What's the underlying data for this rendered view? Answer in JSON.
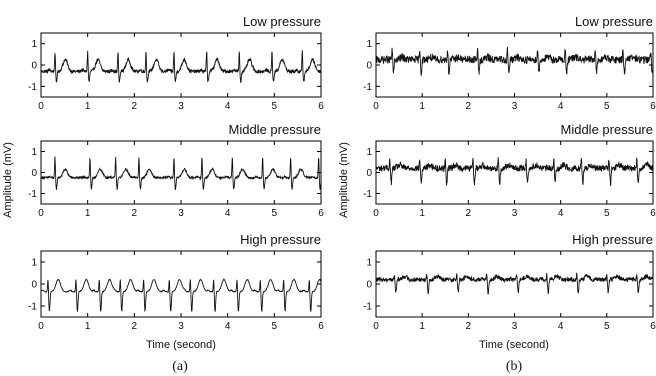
{
  "figure": {
    "ylabel": "Amplitude (mV)",
    "xlabel": "Time (second)",
    "captions": [
      "(a)",
      "(b)"
    ]
  },
  "style": {
    "trace_color": "#111111",
    "axis_color": "#000000"
  },
  "chart_data": [
    {
      "id": "a-low",
      "panel": "(a)",
      "type": "line",
      "title": "Low pressure",
      "xlim": [
        0,
        6
      ],
      "ylim": [
        -1.5,
        1.5
      ],
      "xticks": [
        0,
        1,
        2,
        3,
        4,
        5,
        6
      ],
      "yticks": [
        -1,
        0,
        1
      ],
      "beat_times": [
        0.3,
        1.0,
        1.65,
        2.25,
        2.85,
        3.55,
        4.25,
        4.95,
        5.6
      ],
      "r_peak": 0.95,
      "s_trough": -0.5,
      "t_wave": 0.55,
      "baseline": -0.3,
      "noise": 0.08
    },
    {
      "id": "a-mid",
      "panel": "(a)",
      "type": "line",
      "title": "Middle pressure",
      "xlim": [
        0,
        6
      ],
      "ylim": [
        -1.5,
        1.5
      ],
      "xticks": [
        0,
        1,
        2,
        3,
        4,
        5,
        6
      ],
      "yticks": [
        -1,
        0,
        1
      ],
      "beat_times": [
        0.3,
        1.05,
        1.6,
        2.1,
        2.85,
        3.45,
        4.1,
        4.75,
        5.35,
        5.95
      ],
      "r_peak": 1.0,
      "s_trough": -0.55,
      "t_wave": 0.4,
      "baseline": -0.25,
      "noise": 0.05
    },
    {
      "id": "a-high",
      "panel": "(a)",
      "type": "line",
      "title": "High pressure",
      "xlim": [
        0,
        6
      ],
      "ylim": [
        -1.5,
        1.5
      ],
      "xticks": [
        0,
        1,
        2,
        3,
        4,
        5,
        6
      ],
      "yticks": [
        -1,
        0,
        1
      ],
      "beat_times": [
        0.15,
        0.75,
        1.25,
        1.7,
        2.2,
        2.75,
        3.2,
        3.7,
        4.2,
        4.7,
        5.2,
        5.75
      ],
      "r_peak": 0.6,
      "s_trough": -0.9,
      "t_wave": 0.55,
      "baseline": -0.35,
      "noise": 0.02
    },
    {
      "id": "b-low",
      "panel": "(b)",
      "type": "line",
      "title": "Low pressure",
      "xlim": [
        0,
        6
      ],
      "ylim": [
        -1.5,
        1.5
      ],
      "xticks": [
        0,
        1,
        2,
        3,
        4,
        5,
        6
      ],
      "yticks": [
        -1,
        0,
        1
      ],
      "beat_times": [
        0.35,
        0.95,
        1.55,
        2.2,
        2.85,
        3.5,
        4.1,
        4.75,
        5.35,
        5.95
      ],
      "r_peak": 0.5,
      "s_trough": -0.6,
      "t_wave": 0.1,
      "baseline": 0.25,
      "noise": 0.18
    },
    {
      "id": "b-mid",
      "panel": "(b)",
      "type": "line",
      "title": "Middle pressure",
      "xlim": [
        0,
        6
      ],
      "ylim": [
        -1.5,
        1.5
      ],
      "xticks": [
        0,
        1,
        2,
        3,
        4,
        5,
        6
      ],
      "yticks": [
        -1,
        0,
        1
      ],
      "beat_times": [
        0.3,
        0.95,
        1.5,
        2.1,
        2.65,
        3.25,
        3.85,
        4.45,
        5.05,
        5.65
      ],
      "r_peak": 0.45,
      "s_trough": -0.7,
      "t_wave": 0.15,
      "baseline": 0.2,
      "noise": 0.15
    },
    {
      "id": "b-high",
      "panel": "(b)",
      "type": "line",
      "title": "High pressure",
      "xlim": [
        0,
        6
      ],
      "ylim": [
        -1.5,
        1.5
      ],
      "xticks": [
        0,
        1,
        2,
        3,
        4,
        5,
        6
      ],
      "yticks": [
        -1,
        0,
        1
      ],
      "beat_times": [
        0.4,
        1.1,
        1.75,
        2.4,
        3.05,
        3.7,
        4.35,
        5.0,
        5.65
      ],
      "r_peak": 0.25,
      "s_trough": -0.6,
      "t_wave": 0.15,
      "baseline": 0.2,
      "noise": 0.1
    }
  ]
}
